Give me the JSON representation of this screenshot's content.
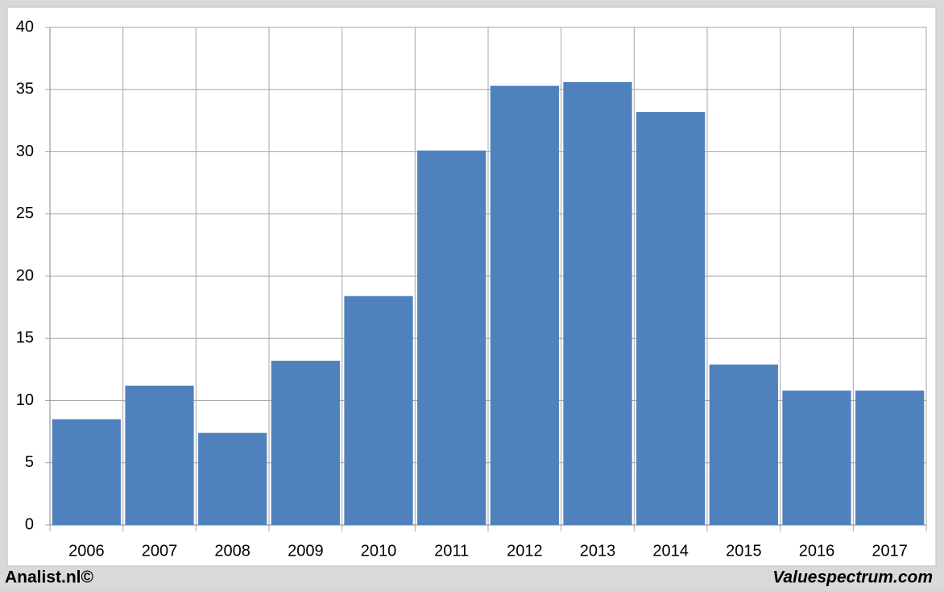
{
  "chart_data": {
    "type": "bar",
    "categories": [
      "2006",
      "2007",
      "2008",
      "2009",
      "2010",
      "2011",
      "2012",
      "2013",
      "2014",
      "2015",
      "2016",
      "2017"
    ],
    "values": [
      8.5,
      11.2,
      7.4,
      13.2,
      18.4,
      30.1,
      35.3,
      35.6,
      33.2,
      12.9,
      10.8,
      10.8
    ],
    "color": "#4f81bd",
    "ylim": [
      0,
      40
    ],
    "yticks": [
      0,
      5,
      10,
      15,
      20,
      25,
      30,
      35,
      40
    ],
    "grid": true,
    "footer_left": "Analist.nl©",
    "footer_right": "Valuespectrum.com"
  }
}
